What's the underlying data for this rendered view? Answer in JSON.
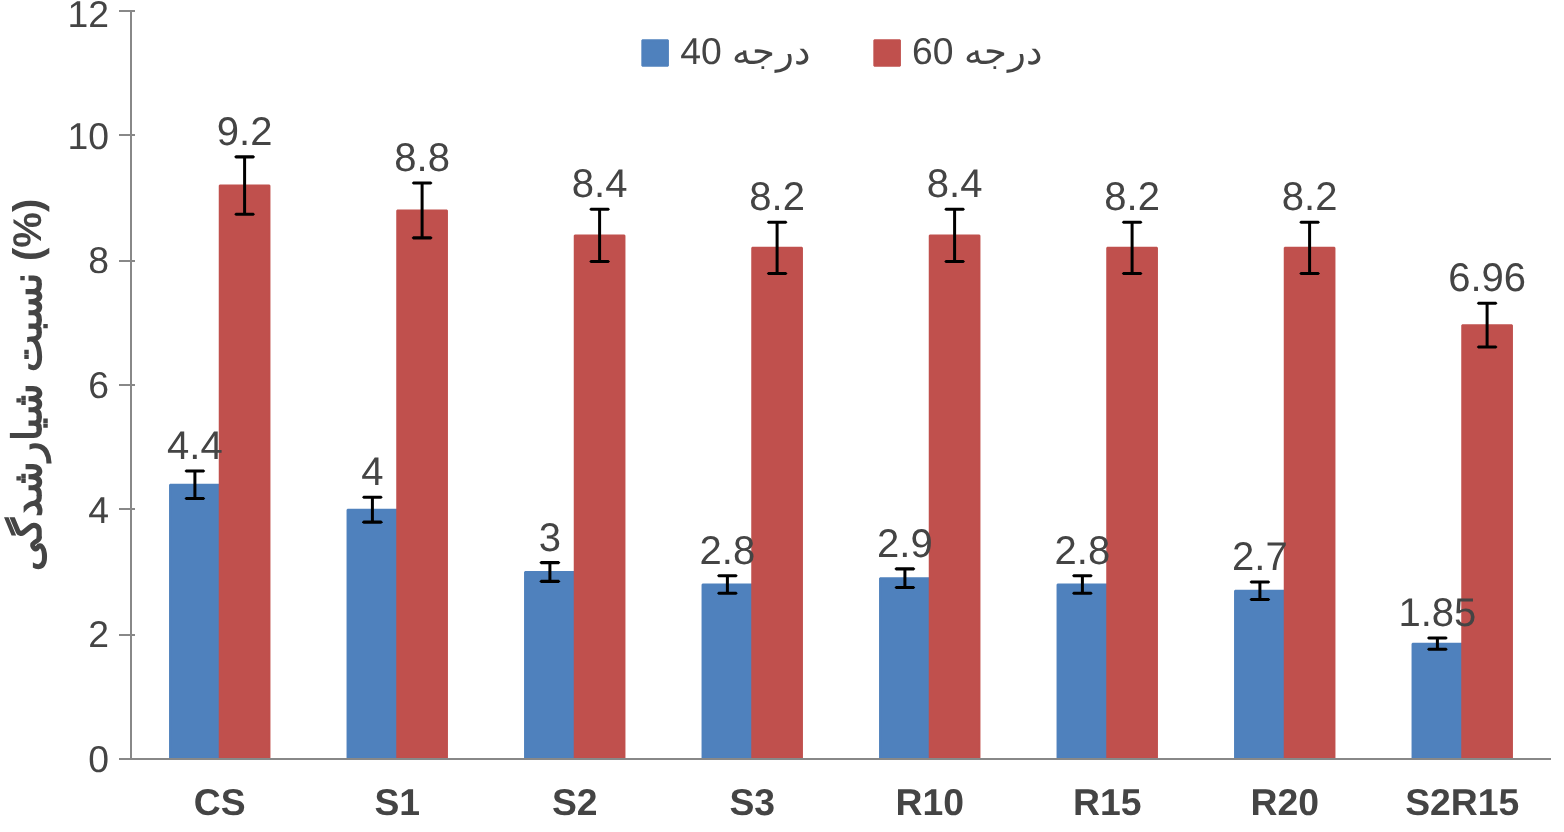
{
  "chart_data": {
    "type": "bar",
    "ylabel": "نسبت شیارشدگی (%)",
    "categories": [
      "CS",
      "S1",
      "S2",
      "S3",
      "R10",
      "R15",
      "R20",
      "S2R15"
    ],
    "series": [
      {
        "name": "40 درجه",
        "color": "#4f81bd",
        "values": [
          4.4,
          4,
          3,
          2.8,
          2.9,
          2.8,
          2.7,
          1.85
        ],
        "errors": [
          0.22,
          0.2,
          0.15,
          0.14,
          0.15,
          0.14,
          0.14,
          0.09
        ]
      },
      {
        "name": "60 درجه",
        "color": "#c0504d",
        "values": [
          9.2,
          8.8,
          8.4,
          8.2,
          8.4,
          8.2,
          8.2,
          6.96
        ],
        "errors": [
          0.46,
          0.44,
          0.42,
          0.41,
          0.42,
          0.41,
          0.41,
          0.35
        ]
      }
    ],
    "ylim": [
      0,
      12
    ],
    "yticks": [
      0,
      2,
      4,
      6,
      8,
      10,
      12
    ],
    "data_labels": true,
    "legend": "top",
    "grid": false
  }
}
